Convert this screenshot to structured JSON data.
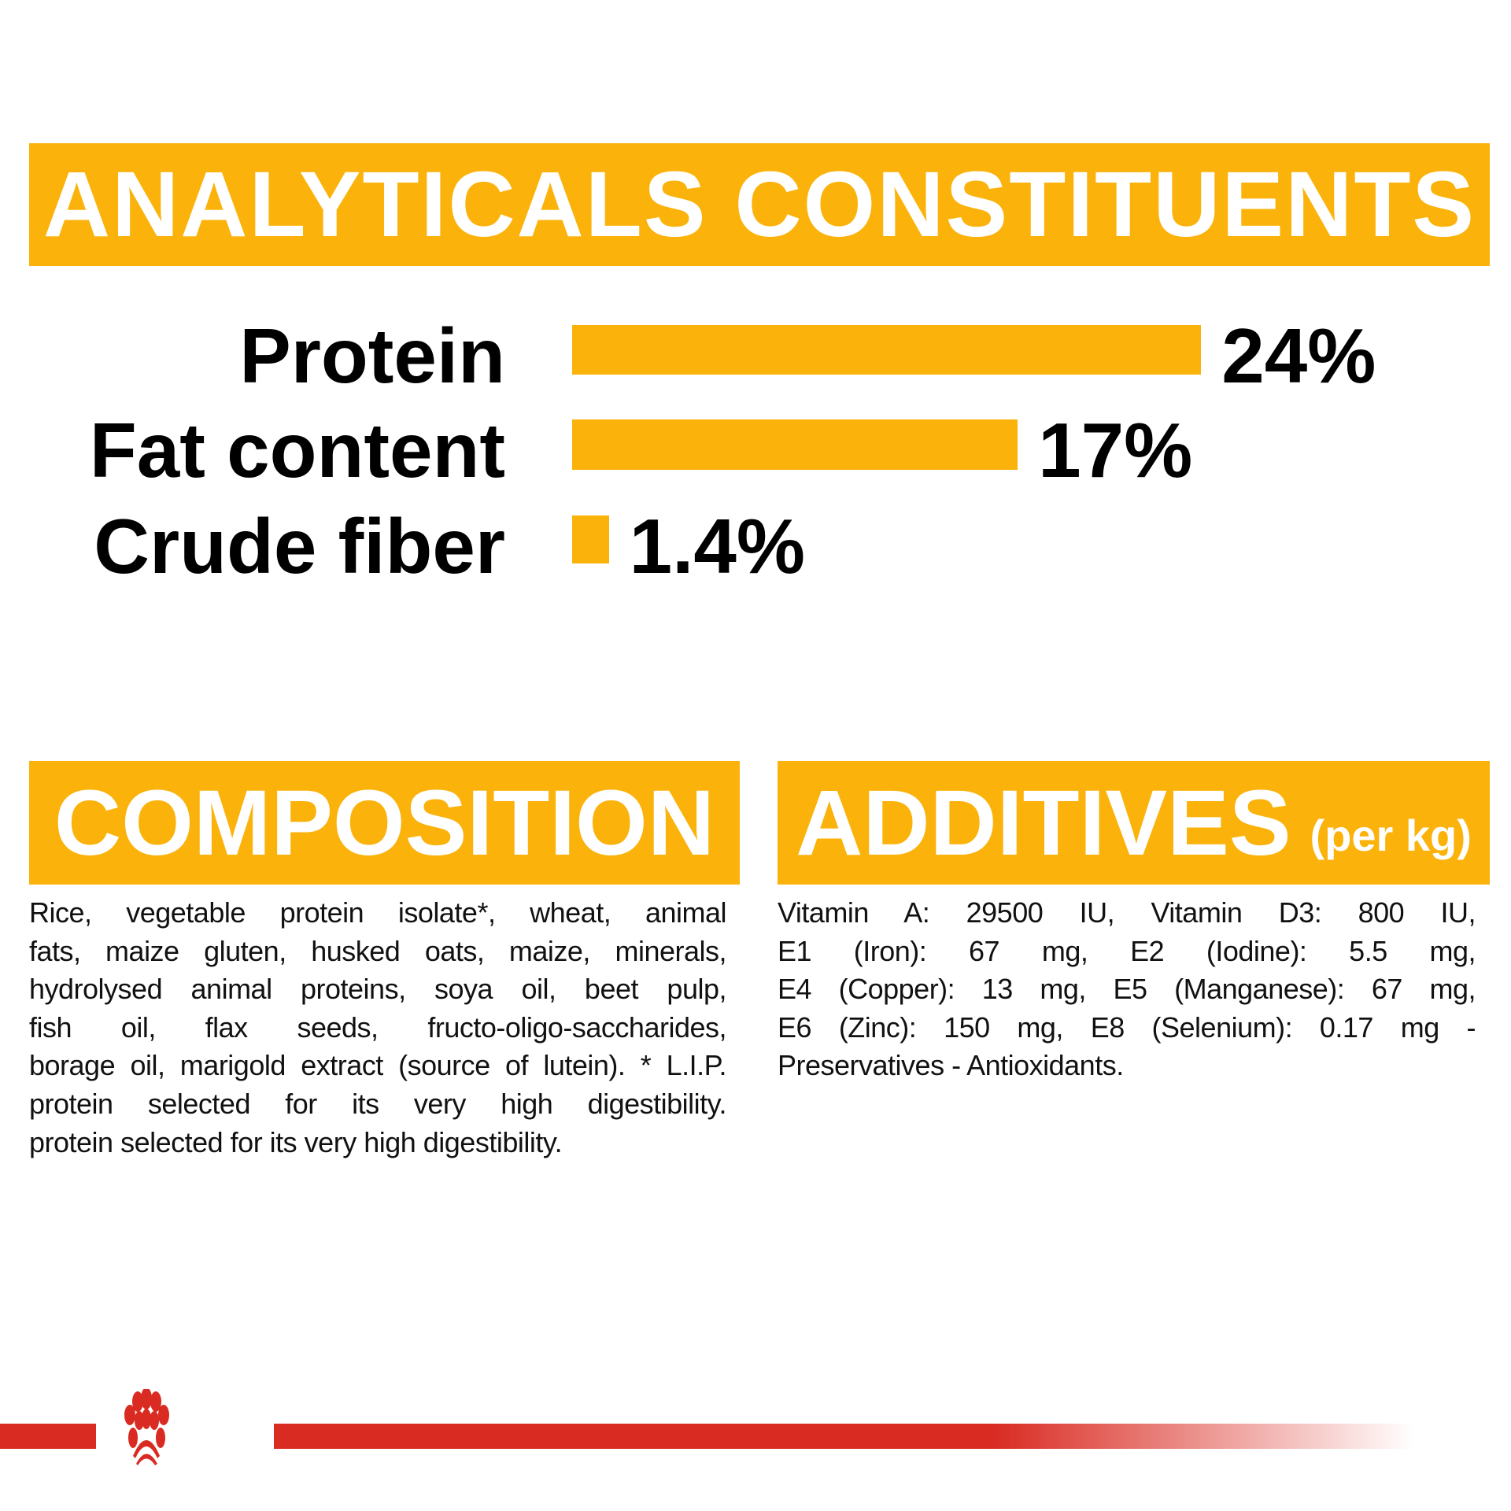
{
  "analytical": {
    "title": "ANALYTICALS CONSTITUENTS"
  },
  "chart_data": {
    "type": "bar",
    "orientation": "horizontal",
    "categories": [
      "Protein",
      "Fat content",
      "Crude fiber"
    ],
    "values": [
      24,
      17,
      1.4
    ],
    "data_labels": [
      "24%",
      "17%",
      "1.4%"
    ],
    "unit": "%",
    "bar_color": "#fbb20a"
  },
  "composition": {
    "title": "COMPOSITION",
    "lines": [
      "Rice, vegetable protein isolate*, wheat, animal",
      "fats, maize gluten, husked oats, maize, minerals,",
      "hydrolysed animal proteins, soya oil, beet pulp,",
      "fish oil, flax seeds, fructo-oligo-saccharides,",
      "borage oil, marigold extract (source of lutein). * L.I.P.",
      "protein selected for its very high digestibility.",
      "protein selected for its very high digestibility."
    ]
  },
  "additives": {
    "title": "ADDITIVES",
    "subtitle": "(per kg)",
    "lines": [
      "Vitamin A: 29500 IU, Vitamin D3: 800 IU,",
      "E1 (Iron): 67 mg, E2 (Iodine): 5.5 mg,",
      "E4 (Copper): 13 mg, E5 (Manganese): 67 mg,",
      "E6 (Zinc): 150 mg, E8 (Selenium): 0.17 mg -",
      "Preservatives - Antioxidants."
    ]
  },
  "colors": {
    "accent": "#fbb20a",
    "brand_red": "#d92b22"
  },
  "logo": {
    "icon": "royal-canin-crown-icon"
  }
}
